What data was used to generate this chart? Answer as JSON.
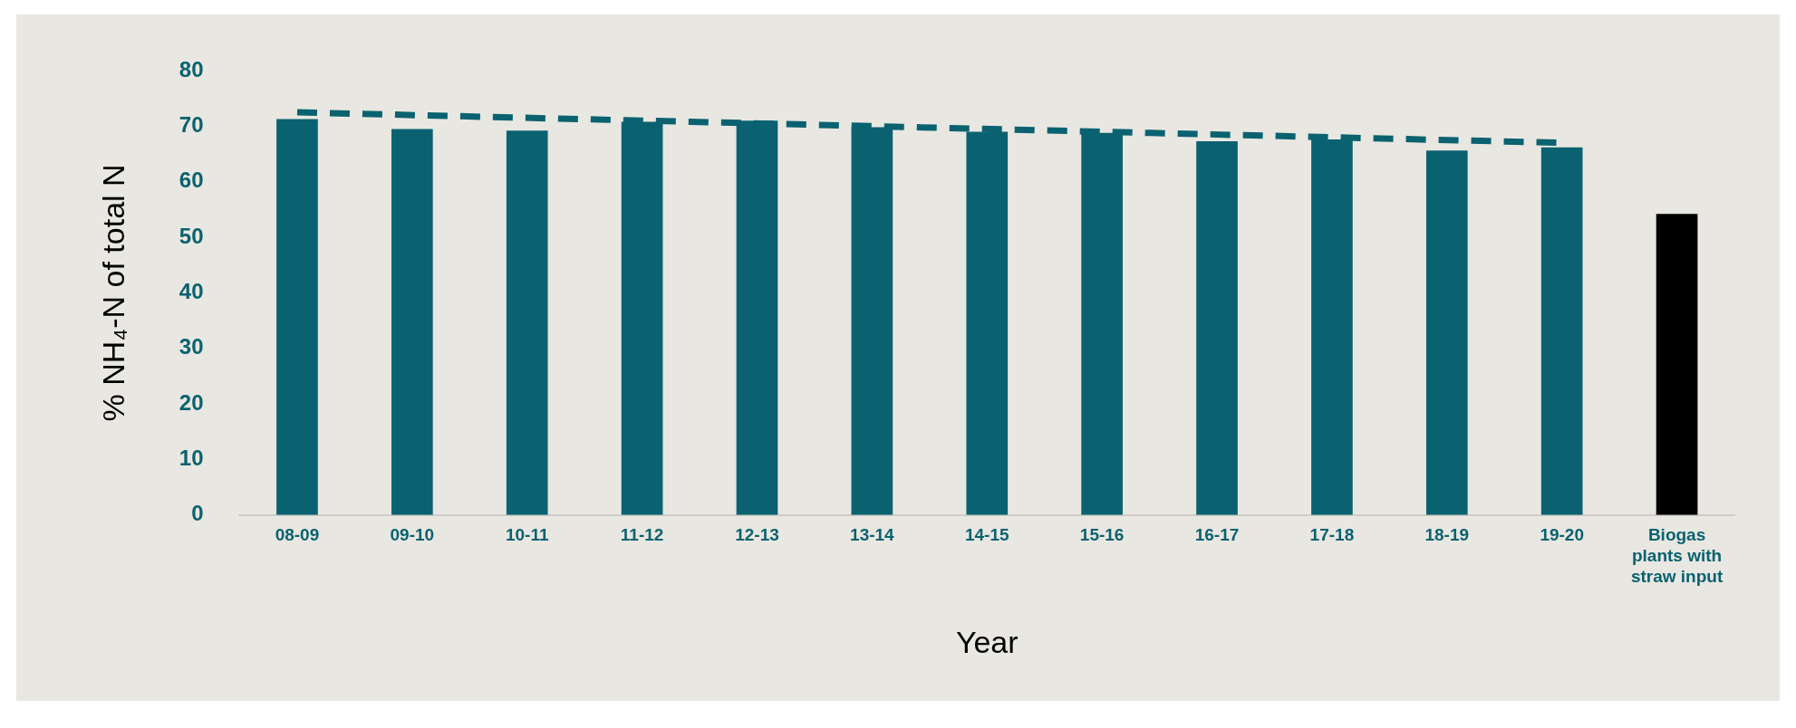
{
  "chart_data": {
    "type": "bar",
    "xlabel": "Year",
    "ylabel": "% NH₄-N of total N",
    "categories": [
      "08-09",
      "09-10",
      "10-11",
      "11-12",
      "12-13",
      "13-14",
      "14-15",
      "15-16",
      "16-17",
      "17-18",
      "18-19",
      "19-20",
      "Biogas plants with straw input"
    ],
    "ylim": [
      0,
      80
    ],
    "yticks": [
      0,
      10,
      20,
      30,
      40,
      50,
      60,
      70,
      80
    ],
    "grid": false,
    "legend": false,
    "series": [
      {
        "colors": [
          "#0a6270",
          "#0a6270",
          "#0a6270",
          "#0a6270",
          "#0a6270",
          "#0a6270",
          "#0a6270",
          "#0a6270",
          "#0a6270",
          "#0a6270",
          "#0a6270",
          "#0a6270",
          "#000000"
        ],
        "values": [
          71.3,
          69.5,
          69.2,
          70.8,
          71.0,
          69.8,
          69.0,
          68.8,
          67.3,
          67.6,
          65.6,
          66.2,
          54.2
        ]
      },
      {
        "type": "line",
        "color": "#0a6270",
        "line_style": "dashed",
        "marker": "none",
        "values": [
          72.5,
          null,
          null,
          null,
          null,
          null,
          null,
          null,
          null,
          null,
          null,
          67.0,
          null
        ]
      }
    ]
  }
}
